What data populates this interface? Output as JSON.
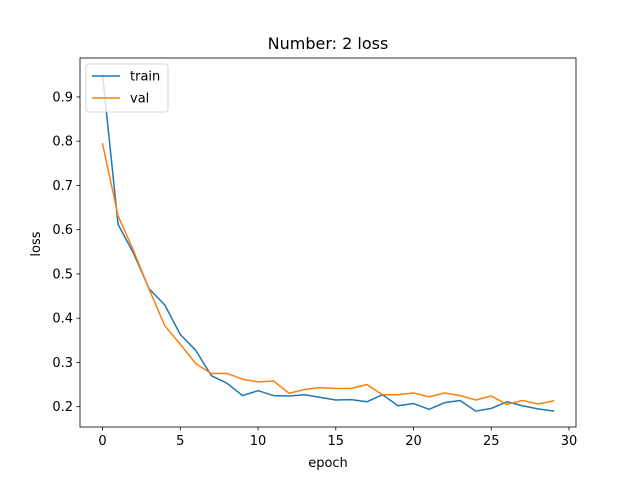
{
  "chart_data": {
    "type": "line",
    "title": "Number: 2 loss",
    "xlabel": "epoch",
    "ylabel": "loss",
    "xlim": [
      -1.45,
      30.45
    ],
    "ylim": [
      0.154,
      0.988
    ],
    "xticks": [
      0,
      5,
      10,
      15,
      20,
      25,
      30
    ],
    "yticks": [
      0.2,
      0.3,
      0.4,
      0.5,
      0.6,
      0.7,
      0.8,
      0.9
    ],
    "grid": false,
    "legend_position": "top-left",
    "x": [
      0,
      1,
      2,
      3,
      4,
      5,
      6,
      7,
      8,
      9,
      10,
      11,
      12,
      13,
      14,
      15,
      16,
      17,
      18,
      19,
      20,
      21,
      22,
      23,
      24,
      25,
      26,
      27,
      28,
      29
    ],
    "series": [
      {
        "name": "train",
        "color": "#1f77b4",
        "values": [
          0.95,
          0.612,
          0.546,
          0.466,
          0.43,
          0.363,
          0.327,
          0.27,
          0.253,
          0.225,
          0.236,
          0.225,
          0.224,
          0.227,
          0.221,
          0.215,
          0.216,
          0.211,
          0.227,
          0.202,
          0.207,
          0.194,
          0.209,
          0.214,
          0.19,
          0.196,
          0.211,
          0.202,
          0.195,
          0.19
        ]
      },
      {
        "name": "val",
        "color": "#ff7f0e",
        "values": [
          0.794,
          0.631,
          0.552,
          0.465,
          0.383,
          0.341,
          0.297,
          0.275,
          0.275,
          0.262,
          0.256,
          0.258,
          0.23,
          0.239,
          0.243,
          0.241,
          0.241,
          0.25,
          0.227,
          0.227,
          0.231,
          0.222,
          0.231,
          0.225,
          0.215,
          0.224,
          0.205,
          0.214,
          0.206,
          0.213
        ]
      }
    ]
  }
}
